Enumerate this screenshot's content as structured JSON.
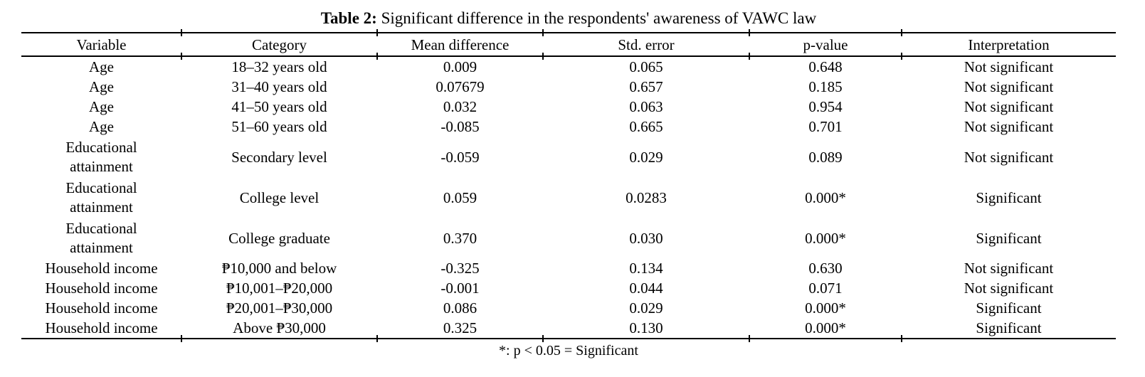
{
  "title": {
    "label": "Table 2:",
    "text": " Significant difference in the respondents' awareness of VAWC law"
  },
  "table": {
    "headers": {
      "variable": "Variable",
      "category": "Category",
      "mean_difference": "Mean difference",
      "std_error": "Std. error",
      "p_value": "p-value",
      "interpretation": "Interpretation"
    },
    "rows": [
      {
        "variable": "Age",
        "category": "18–32 years old",
        "mean_difference": "0.009",
        "std_error": "0.065",
        "p_value": "0.648",
        "interpretation": "Not significant"
      },
      {
        "variable": "Age",
        "category": "31–40 years old",
        "mean_difference": "0.07679",
        "std_error": "0.657",
        "p_value": "0.185",
        "interpretation": "Not significant"
      },
      {
        "variable": "Age",
        "category": "41–50 years old",
        "mean_difference": "0.032",
        "std_error": "0.063",
        "p_value": "0.954",
        "interpretation": "Not significant"
      },
      {
        "variable": "Age",
        "category": "51–60 years old",
        "mean_difference": "-0.085",
        "std_error": "0.665",
        "p_value": "0.701",
        "interpretation": "Not significant"
      },
      {
        "variable": "Educational attainment",
        "category": "Secondary level",
        "mean_difference": "-0.059",
        "std_error": "0.029",
        "p_value": "0.089",
        "interpretation": "Not significant"
      },
      {
        "variable": "Educational attainment",
        "category": "College level",
        "mean_difference": "0.059",
        "std_error": "0.0283",
        "p_value": "0.000*",
        "interpretation": "Significant"
      },
      {
        "variable": "Educational attainment",
        "category": "College graduate",
        "mean_difference": "0.370",
        "std_error": "0.030",
        "p_value": "0.000*",
        "interpretation": "Significant"
      },
      {
        "variable": "Household income",
        "category": "₱10,000 and below",
        "mean_difference": "-0.325",
        "std_error": "0.134",
        "p_value": "0.630",
        "interpretation": "Not significant"
      },
      {
        "variable": "Household income",
        "category": "₱10,001–₱20,000",
        "mean_difference": "-0.001",
        "std_error": "0.044",
        "p_value": "0.071",
        "interpretation": "Not significant"
      },
      {
        "variable": "Household income",
        "category": "₱20,001–₱30,000",
        "mean_difference": "0.086",
        "std_error": "0.029",
        "p_value": "0.000*",
        "interpretation": "Significant"
      },
      {
        "variable": "Household income",
        "category": "Above ₱30,000",
        "mean_difference": "0.325",
        "std_error": "0.130",
        "p_value": "0.000*",
        "interpretation": "Significant"
      }
    ],
    "footnote": "*: p < 0.05 = Significant"
  }
}
